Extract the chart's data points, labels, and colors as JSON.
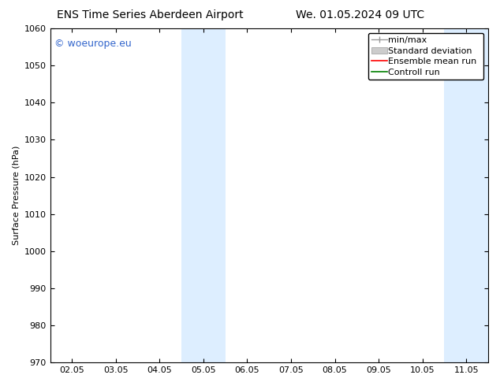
{
  "title_left": "ENS Time Series Aberdeen Airport",
  "title_right": "We. 01.05.2024 09 UTC",
  "ylabel": "Surface Pressure (hPa)",
  "ylim": [
    970,
    1060
  ],
  "yticks": [
    970,
    980,
    990,
    1000,
    1010,
    1020,
    1030,
    1040,
    1050,
    1060
  ],
  "xtick_labels": [
    "02.05",
    "03.05",
    "04.05",
    "05.05",
    "06.05",
    "07.05",
    "08.05",
    "09.05",
    "10.05",
    "11.05"
  ],
  "xlim": [
    0,
    10
  ],
  "shaded_bands": [
    {
      "x_start": 2.5,
      "x_end": 3.5
    },
    {
      "x_start": 8.5,
      "x_end": 9.5
    }
  ],
  "band_color": "#ddeeff",
  "watermark": "© woeurope.eu",
  "watermark_color": "#3366cc",
  "legend_entries": [
    {
      "label": "min/max",
      "color": "#999999"
    },
    {
      "label": "Standard deviation",
      "color": "#cccccc"
    },
    {
      "label": "Ensemble mean run",
      "color": "red"
    },
    {
      "label": "Controll run",
      "color": "green"
    }
  ],
  "bg_color": "#ffffff",
  "font_size": 8,
  "title_font_size": 10
}
